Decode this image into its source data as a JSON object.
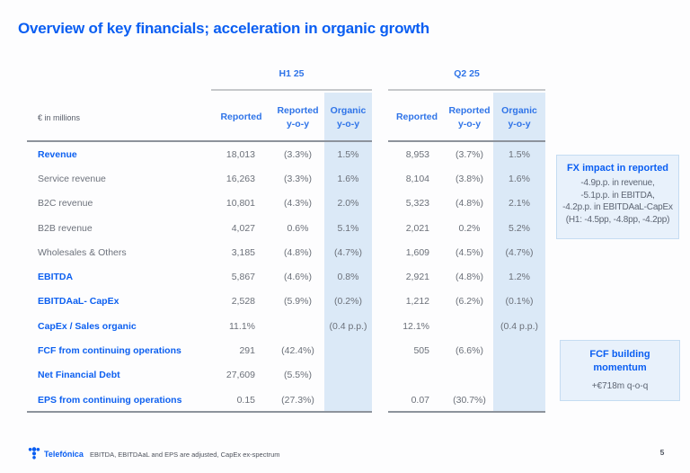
{
  "title": "Overview of key financials; acceleration in organic growth",
  "colors": {
    "accent_blue": "#0a5ef2",
    "header_blue": "#2f74e8",
    "value_gray": "#6b7079",
    "organic_column_bg": "#dbe9f7",
    "callout_bg": "#e8f1fb"
  },
  "table": {
    "unit_label": "€ in millions",
    "groups": [
      {
        "label": "H1 25",
        "columns": [
          "Reported",
          "Reported\ny-o-y",
          "Organic\ny-o-y"
        ]
      },
      {
        "label": "Q2 25",
        "columns": [
          "Reported",
          "Reported\ny-o-y",
          "Organic\ny-o-y"
        ]
      }
    ],
    "rows": [
      {
        "label": "Revenue",
        "emphasis": true,
        "h1": [
          "18,013",
          "(3.3%)",
          "1.5%"
        ],
        "q2": [
          "8,953",
          "(3.7%)",
          "1.5%"
        ]
      },
      {
        "label": "Service revenue",
        "emphasis": false,
        "h1": [
          "16,263",
          "(3.3%)",
          "1.6%"
        ],
        "q2": [
          "8,104",
          "(3.8%)",
          "1.6%"
        ]
      },
      {
        "label": "B2C revenue",
        "emphasis": false,
        "h1": [
          "10,801",
          "(4.3%)",
          "2.0%"
        ],
        "q2": [
          "5,323",
          "(4.8%)",
          "2.1%"
        ]
      },
      {
        "label": "B2B revenue",
        "emphasis": false,
        "h1": [
          "4,027",
          "0.6%",
          "5.1%"
        ],
        "q2": [
          "2,021",
          "0.2%",
          "5.2%"
        ]
      },
      {
        "label": "Wholesales & Others",
        "emphasis": false,
        "h1": [
          "3,185",
          "(4.8%)",
          "(4.7%)"
        ],
        "q2": [
          "1,609",
          "(4.5%)",
          "(4.7%)"
        ]
      },
      {
        "label": "EBITDA",
        "emphasis": true,
        "h1": [
          "5,867",
          "(4.6%)",
          "0.8%"
        ],
        "q2": [
          "2,921",
          "(4.8%)",
          "1.2%"
        ]
      },
      {
        "label": "EBITDAaL- CapEx",
        "emphasis": true,
        "h1": [
          "2,528",
          "(5.9%)",
          "(0.2%)"
        ],
        "q2": [
          "1,212",
          "(6.2%)",
          "(0.1%)"
        ]
      },
      {
        "label": "CapEx / Sales organic",
        "emphasis": true,
        "h1": [
          "11.1%",
          "",
          "(0.4 p.p.)"
        ],
        "q2": [
          "12.1%",
          "",
          "(0.4 p.p.)"
        ]
      },
      {
        "label": "FCF from continuing operations",
        "emphasis": true,
        "h1": [
          "291",
          "(42.4%)",
          ""
        ],
        "q2": [
          "505",
          "(6.6%)",
          ""
        ]
      },
      {
        "label": "Net Financial Debt",
        "emphasis": true,
        "h1": [
          "27,609",
          "(5.5%)",
          ""
        ],
        "q2": [
          "",
          "",
          ""
        ]
      },
      {
        "label": "EPS from continuing operations",
        "emphasis": true,
        "h1": [
          "0.15",
          "(27.3%)",
          ""
        ],
        "q2": [
          "0.07",
          "(30.7%)",
          ""
        ]
      }
    ]
  },
  "callouts": [
    {
      "title": "FX impact in reported",
      "lines": [
        "-4.9p.p. in revenue,",
        "-5.1p.p. in EBITDA,",
        "-4.2p.p. in EBITDAaL-CapEx",
        "(H1: -4.5pp, -4.8pp, -4.2pp)"
      ]
    },
    {
      "title": "FCF building\nmomentum",
      "lines": [
        "+€718m q-o-q"
      ]
    }
  ],
  "footer": {
    "brand": "Telefónica",
    "footnote": "EBITDA, EBITDAaL and EPS are adjusted, CapEx ex-spectrum",
    "page_number": "5"
  }
}
